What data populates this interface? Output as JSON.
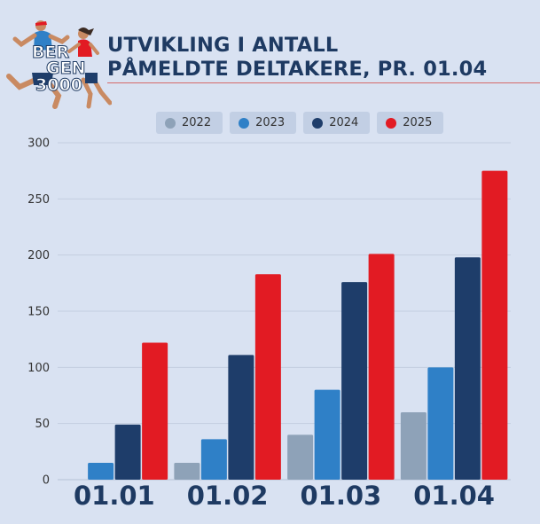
{
  "logo": {
    "line1": "BER",
    "line2": "GEN",
    "line3": "3000"
  },
  "header": {
    "title_line1": "UTVIKLING I ANTALL",
    "title_line2": "PÅMELDTE DELTAKERE, PR. 01.04"
  },
  "colors": {
    "2022": "#8ea2b8",
    "2023": "#2f80c7",
    "2024": "#1e3d6a",
    "2025": "#e21b23",
    "background": "#d9e2f2",
    "title": "#1e3a62"
  },
  "chart_data": {
    "type": "bar",
    "title": "UTVIKLING I ANTALL PÅMELDTE DELTAKERE, PR. 01.04",
    "categories": [
      "01.01",
      "01.02",
      "01.03",
      "01.04"
    ],
    "series": [
      {
        "name": "2022",
        "values": [
          0,
          15,
          40,
          60
        ]
      },
      {
        "name": "2023",
        "values": [
          15,
          36,
          80,
          100
        ]
      },
      {
        "name": "2024",
        "values": [
          49,
          111,
          176,
          198
        ]
      },
      {
        "name": "2025",
        "values": [
          122,
          183,
          201,
          275
        ]
      }
    ],
    "ylim": [
      0,
      300
    ],
    "yticks": [
      "0",
      "50",
      "100",
      "150",
      "200",
      "250",
      "300"
    ],
    "grid": true,
    "legend": "top"
  }
}
